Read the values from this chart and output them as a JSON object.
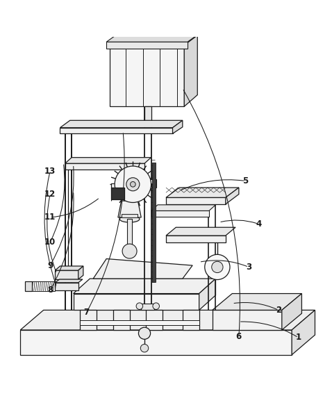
{
  "background_color": "#ffffff",
  "line_color": "#1a1a1a",
  "label_color": "#1a1a1a",
  "figsize": [
    4.78,
    5.83
  ],
  "dpi": 100,
  "label_positions": {
    "1": [
      0.9,
      0.092,
      0.72,
      0.14
    ],
    "2": [
      0.84,
      0.175,
      0.7,
      0.195
    ],
    "3": [
      0.75,
      0.305,
      0.6,
      0.32
    ],
    "4": [
      0.78,
      0.435,
      0.66,
      0.44
    ],
    "5": [
      0.74,
      0.565,
      0.54,
      0.535
    ],
    "6": [
      0.72,
      0.095,
      0.55,
      0.845
    ],
    "7": [
      0.26,
      0.168,
      0.37,
      0.715
    ],
    "8": [
      0.15,
      0.235,
      0.22,
      0.535
    ],
    "9": [
      0.15,
      0.31,
      0.22,
      0.615
    ],
    "10": [
      0.15,
      0.38,
      0.19,
      0.62
    ],
    "11": [
      0.15,
      0.455,
      0.3,
      0.515
    ],
    "12": [
      0.15,
      0.525,
      0.17,
      0.285
    ],
    "13": [
      0.15,
      0.595,
      0.17,
      0.245
    ]
  }
}
